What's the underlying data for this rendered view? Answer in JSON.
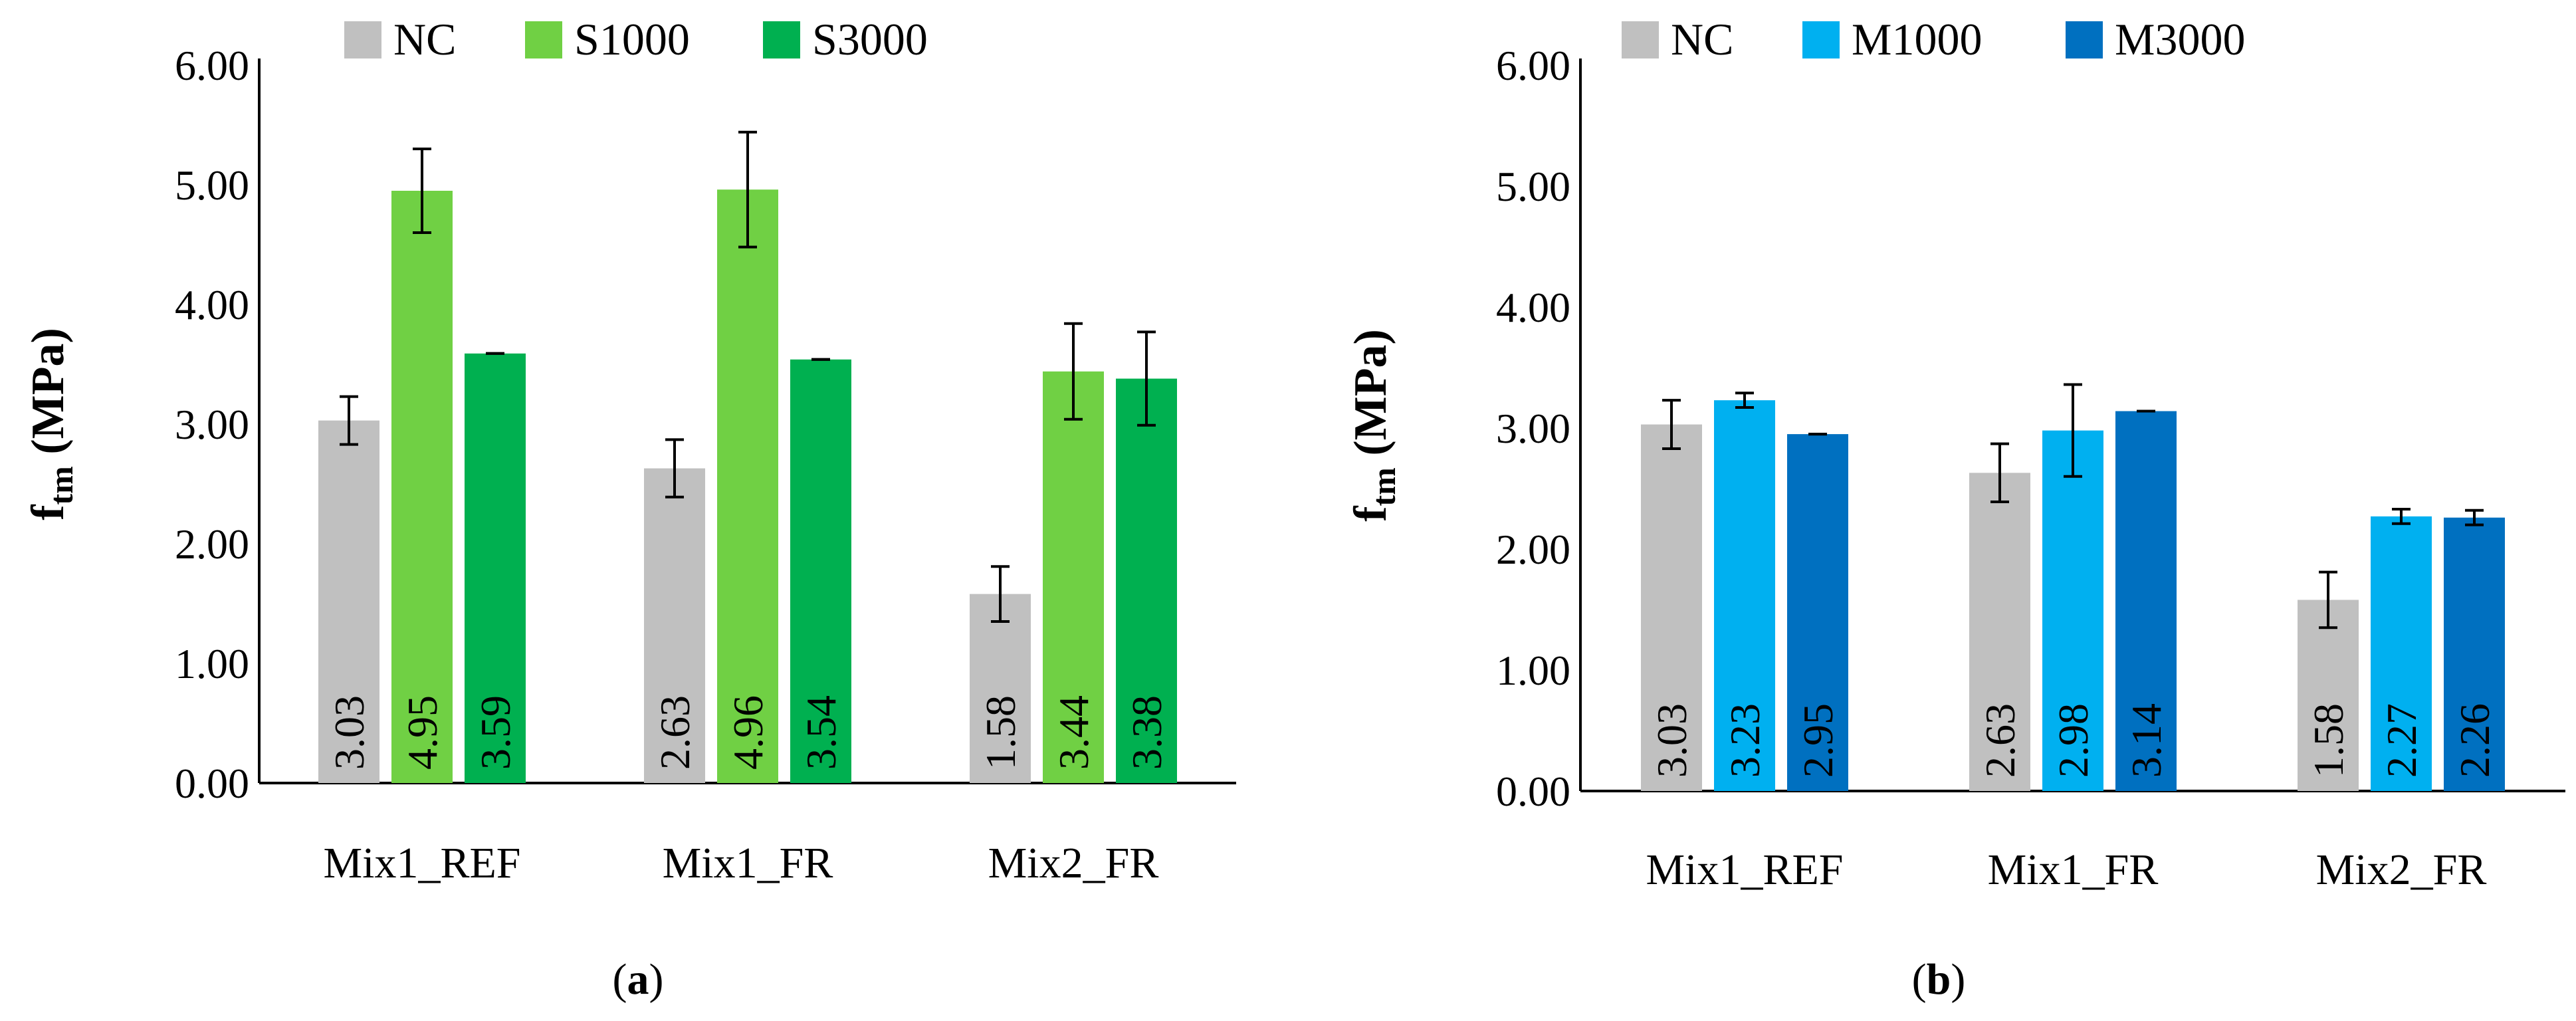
{
  "chart_data": [
    {
      "type": "bar",
      "panel": "a",
      "panel_label": "a",
      "ylabel_main": "f",
      "ylabel_sub": "tm",
      "ylabel_units": " (MPa)",
      "ylim": [
        0,
        6
      ],
      "yticks": [
        "0.00",
        "1.00",
        "2.00",
        "3.00",
        "4.00",
        "5.00",
        "6.00"
      ],
      "categories": [
        "Mix1_REF",
        "Mix1_FR",
        "Mix2_FR"
      ],
      "legend_position": "top",
      "series": [
        {
          "name": "NC",
          "color": "#c0c0c0",
          "values": [
            3.03,
            2.63,
            1.58
          ],
          "labels": [
            "3.03",
            "2.63",
            "1.58"
          ],
          "errors": [
            0.2,
            0.24,
            0.23
          ]
        },
        {
          "name": "S1000",
          "color": "#70d044",
          "values": [
            4.95,
            4.96,
            3.44
          ],
          "labels": [
            "4.95",
            "4.96",
            "3.44"
          ],
          "errors": [
            0.35,
            0.48,
            0.4
          ]
        },
        {
          "name": "S3000",
          "color": "#00b050",
          "values": [
            3.59,
            3.54,
            3.38
          ],
          "labels": [
            "3.59",
            "3.54",
            "3.38"
          ],
          "errors": [
            0.0,
            0.0,
            0.39
          ]
        }
      ]
    },
    {
      "type": "bar",
      "panel": "b",
      "panel_label": "b",
      "ylabel_main": "f",
      "ylabel_sub": "tm",
      "ylabel_units": " (MPa)",
      "ylim": [
        0,
        6
      ],
      "yticks": [
        "0.00",
        "1.00",
        "2.00",
        "3.00",
        "4.00",
        "5.00",
        "6.00"
      ],
      "categories": [
        "Mix1_REF",
        "Mix1_FR",
        "Mix2_FR"
      ],
      "legend_position": "top",
      "series": [
        {
          "name": "NC",
          "color": "#c0c0c0",
          "values": [
            3.03,
            2.63,
            1.58
          ],
          "labels": [
            "3.03",
            "2.63",
            "1.58"
          ],
          "errors": [
            0.2,
            0.24,
            0.23
          ]
        },
        {
          "name": "M1000",
          "color": "#00b0f0",
          "values": [
            3.23,
            2.98,
            2.27
          ],
          "labels": [
            "3.23",
            "2.98",
            "2.27"
          ],
          "errors": [
            0.06,
            0.38,
            0.06
          ]
        },
        {
          "name": "M3000",
          "color": "#0070c0",
          "values": [
            2.95,
            3.14,
            2.26
          ],
          "labels": [
            "2.95",
            "3.14",
            "2.26"
          ],
          "errors": [
            0.0,
            0.0,
            0.06
          ]
        }
      ]
    }
  ]
}
